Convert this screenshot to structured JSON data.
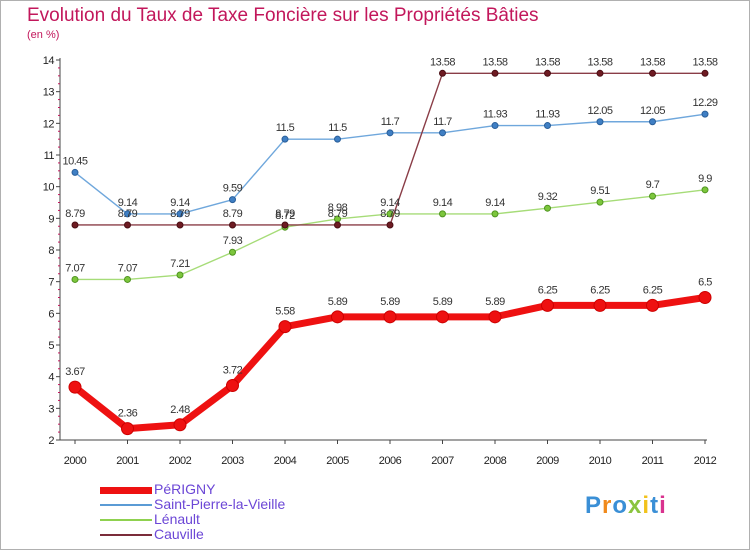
{
  "title": "Evolution du Taux de Taxe Foncière sur les Propriétés Bâties",
  "unit_label": "(en %)",
  "logo_text": "Proxiti",
  "chart_data": {
    "type": "line",
    "title": "Evolution du Taux de Taxe Foncière sur les Propriétés Bâties",
    "ylabel": "(en %)",
    "xlabel": "",
    "ylim": [
      2,
      14
    ],
    "yticks": [
      2,
      3,
      4,
      5,
      6,
      7,
      8,
      9,
      10,
      11,
      12,
      13,
      14
    ],
    "grid": false,
    "legend_position": "bottom-left",
    "categories": [
      "2000",
      "2001",
      "2002",
      "2003",
      "2004",
      "2005",
      "2006",
      "2007",
      "2008",
      "2009",
      "2010",
      "2011",
      "2012"
    ],
    "series": [
      {
        "name": "PéRIGNY",
        "color": "#ee1111",
        "values": [
          3.67,
          2.36,
          2.48,
          3.72,
          5.58,
          5.89,
          5.89,
          5.89,
          5.89,
          6.25,
          6.25,
          6.25,
          6.5
        ],
        "labels": [
          "3.67",
          "2.36",
          "2.48",
          "3.72",
          "5.58",
          "5.89",
          "5.89",
          "5.89",
          "5.89",
          "6.25",
          "6.25",
          "6.25",
          "6.5"
        ]
      },
      {
        "name": "Saint-Pierre-la-Vieille",
        "color": "#5b9bd5",
        "values": [
          10.45,
          9.14,
          9.14,
          9.59,
          11.5,
          11.5,
          11.7,
          11.7,
          11.93,
          11.93,
          12.05,
          12.05,
          12.29
        ],
        "labels": [
          "10.45",
          "9.14",
          "9.14",
          "9.59",
          "11.5",
          "11.5",
          "11.7",
          "11.7",
          "11.93",
          "11.93",
          "12.05",
          "12.05",
          "12.29"
        ]
      },
      {
        "name": "Lénault",
        "color": "#8fd14f",
        "values": [
          7.07,
          7.07,
          7.21,
          7.93,
          8.72,
          8.98,
          9.14,
          9.14,
          9.14,
          9.32,
          9.51,
          9.7,
          9.9
        ],
        "labels": [
          "7.07",
          "7.07",
          "7.21",
          "7.93",
          "8.72",
          "8.98",
          "9.14",
          "9.14",
          "9.14",
          "9.32",
          "9.51",
          "9.7",
          "9.9"
        ]
      },
      {
        "name": "Cauville",
        "color": "#7b2c3a",
        "values": [
          8.79,
          8.79,
          8.79,
          8.79,
          8.79,
          8.79,
          8.79,
          13.58,
          13.58,
          13.58,
          13.58,
          13.58,
          13.58
        ],
        "labels": [
          "8.79",
          "8.79",
          "8.79",
          "8.79",
          "8.79",
          "8.79",
          "8.79",
          "13.58",
          "13.58",
          "13.58",
          "13.58",
          "13.58",
          "13.58"
        ]
      }
    ]
  }
}
